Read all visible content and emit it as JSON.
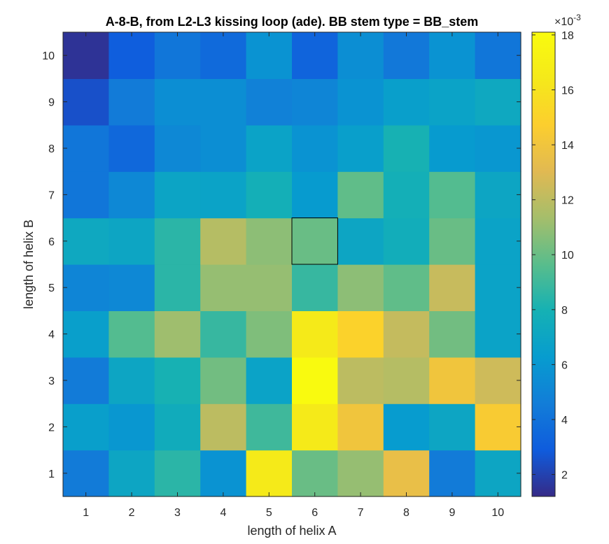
{
  "chart_data": {
    "type": "heatmap",
    "title": "A-8-B, from L2-L3 kissing loop (ade). BB stem type = BB_stem",
    "xlabel": "length of helix A",
    "ylabel": "length of helix B",
    "x": [
      1,
      2,
      3,
      4,
      5,
      6,
      7,
      8,
      9,
      10
    ],
    "y": [
      1,
      2,
      3,
      4,
      5,
      6,
      7,
      8,
      9,
      10
    ],
    "x_tick_labels": [
      "1",
      "2",
      "3",
      "4",
      "5",
      "6",
      "7",
      "8",
      "9",
      "10"
    ],
    "y_tick_labels": [
      "1",
      "2",
      "3",
      "4",
      "5",
      "6",
      "7",
      "8",
      "9",
      "10"
    ],
    "values_by_row_y_ascending": [
      [
        4.5,
        7.0,
        8.5,
        5.8,
        16.5,
        10.0,
        11.0,
        13.5,
        4.5,
        7.0
      ],
      [
        6.5,
        6.0,
        7.5,
        12.0,
        9.0,
        16.5,
        14.0,
        6.3,
        7.0,
        14.5
      ],
      [
        4.5,
        7.0,
        8.0,
        10.2,
        6.8,
        18.0,
        12.0,
        11.8,
        14.0,
        12.5
      ],
      [
        6.5,
        9.5,
        11.2,
        8.8,
        10.5,
        16.5,
        15.0,
        12.2,
        10.2,
        6.8
      ],
      [
        5.0,
        5.2,
        8.5,
        11.0,
        11.0,
        8.8,
        10.8,
        9.8,
        12.3,
        6.8
      ],
      [
        7.2,
        7.0,
        8.5,
        11.8,
        10.8,
        10.0,
        7.0,
        7.6,
        10.0,
        6.8
      ],
      [
        4.2,
        5.2,
        6.9,
        6.8,
        7.8,
        6.2,
        9.8,
        7.8,
        9.5,
        7.0
      ],
      [
        4.2,
        3.5,
        5.2,
        5.5,
        6.8,
        5.8,
        6.5,
        8.0,
        6.2,
        6.0
      ],
      [
        2.5,
        4.5,
        5.5,
        5.5,
        4.8,
        5.0,
        5.8,
        6.5,
        6.8,
        7.2
      ],
      [
        1.5,
        3.0,
        4.2,
        3.6,
        5.8,
        3.3,
        5.5,
        4.3,
        5.8,
        4.2
      ]
    ],
    "highlighted_cell": {
      "x": 6,
      "y": 6
    },
    "colorbar": {
      "colormap": "parula",
      "range": [
        1.2,
        18.1
      ],
      "ticks": [
        2,
        4,
        6,
        8,
        10,
        12,
        14,
        16,
        18
      ],
      "tick_labels": [
        "2",
        "4",
        "6",
        "8",
        "10",
        "12",
        "14",
        "16",
        "18"
      ],
      "multiplier_label": "×10",
      "multiplier_exponent": "-3"
    },
    "grid": false
  }
}
